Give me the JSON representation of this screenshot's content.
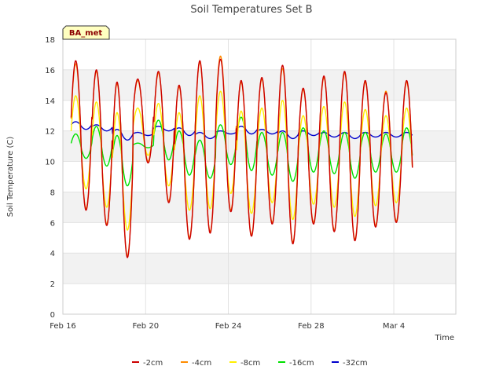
{
  "chart_data": {
    "type": "line",
    "title": "Soil Temperatures Set B",
    "xlabel": "Time",
    "ylabel": "Soil Temperature (C)",
    "badge": "BA_met",
    "x_start": "Feb 16",
    "x_end": "Mar 6",
    "xlim_days": [
      0,
      19
    ],
    "ylim": [
      0,
      18
    ],
    "y_ticks": [
      0,
      2,
      4,
      6,
      8,
      10,
      12,
      14,
      16,
      18
    ],
    "x_ticks": [
      {
        "label": "Feb 16",
        "day": 0
      },
      {
        "label": "Feb 20",
        "day": 4
      },
      {
        "label": "Feb 24",
        "day": 8
      },
      {
        "label": "Feb 28",
        "day": 12
      },
      {
        "label": "Mar 4",
        "day": 16
      }
    ],
    "grid": true,
    "legend_position": "bottom",
    "series": [
      {
        "name": "-2cm",
        "color": "#cc0000",
        "daily_min": [
          6.8,
          5.8,
          3.7,
          9.9,
          7.3,
          4.9,
          5.3,
          6.7,
          5.1,
          5.9,
          4.6,
          5.9,
          5.4,
          4.8,
          5.7,
          6.0,
          6.1
        ],
        "daily_max": [
          16.6,
          16.0,
          15.2,
          15.4,
          15.9,
          15.0,
          16.6,
          16.7,
          15.3,
          15.5,
          16.3,
          14.8,
          15.6,
          15.9,
          15.3,
          14.5,
          15.3
        ]
      },
      {
        "name": "-4cm",
        "color": "#ff8c00",
        "daily_min": [
          6.9,
          5.9,
          3.8,
          10.0,
          7.4,
          5.0,
          5.4,
          6.8,
          5.2,
          6.0,
          4.7,
          6.0,
          5.5,
          4.9,
          5.8,
          6.1,
          6.2
        ],
        "daily_max": [
          16.4,
          15.9,
          15.1,
          15.3,
          15.8,
          14.9,
          16.5,
          16.9,
          15.2,
          15.4,
          16.1,
          14.7,
          15.5,
          15.8,
          15.2,
          14.6,
          15.2
        ]
      },
      {
        "name": "-8cm",
        "color": "#ffee00",
        "daily_min": [
          8.2,
          7.0,
          5.5,
          10.4,
          8.4,
          6.8,
          6.9,
          7.9,
          6.6,
          7.3,
          6.2,
          7.2,
          7.0,
          6.4,
          7.1,
          7.3,
          7.4
        ],
        "daily_max": [
          14.3,
          13.9,
          13.2,
          13.5,
          13.8,
          13.2,
          14.3,
          14.6,
          13.3,
          13.5,
          14.0,
          13.0,
          13.6,
          13.9,
          13.4,
          13.0,
          13.5
        ]
      },
      {
        "name": "-16cm",
        "color": "#00e000",
        "daily_min": [
          10.2,
          9.7,
          8.4,
          10.9,
          10.1,
          9.1,
          8.9,
          9.8,
          9.4,
          9.1,
          8.7,
          9.3,
          9.2,
          8.9,
          9.3,
          9.3,
          9.3
        ],
        "daily_max": [
          11.8,
          12.3,
          11.7,
          11.2,
          12.7,
          12.0,
          11.4,
          12.4,
          12.9,
          11.9,
          11.9,
          12.2,
          12.0,
          11.9,
          11.9,
          11.8,
          12.2
        ]
      },
      {
        "name": "-32cm",
        "color": "#0000cc",
        "daily_min": [
          12.1,
          12.0,
          11.4,
          11.7,
          12.0,
          11.7,
          11.5,
          11.8,
          11.8,
          11.8,
          11.5,
          11.7,
          11.6,
          11.5,
          11.6,
          11.6,
          11.6
        ],
        "daily_max": [
          12.6,
          12.4,
          12.1,
          11.9,
          12.3,
          12.2,
          11.9,
          12.0,
          12.3,
          12.1,
          12.0,
          12.0,
          11.9,
          11.9,
          11.9,
          11.9,
          11.9
        ]
      }
    ]
  }
}
